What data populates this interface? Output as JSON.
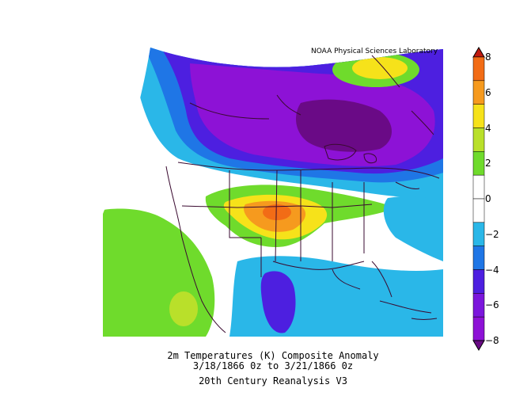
{
  "source_label": "NOAA Physical Sciences Laboratory",
  "caption": {
    "line1": "2m Temperatures (K)    Composite Anomaly",
    "line2": "3/18/1866 0z  to 3/21/1866 0z",
    "line3": "20th Century Reanalysis V3"
  },
  "colorbar": {
    "levels": [
      {
        "label": "8",
        "color": "#c01a0f"
      },
      {
        "label": "6",
        "color": "#f26c16"
      },
      {
        "label": "4",
        "color": "#f6e21a"
      },
      {
        "label": "2",
        "color": "#6fdb2c"
      },
      {
        "label": "0",
        "color": "#ffffff"
      },
      {
        "label": "−2",
        "color": "#2ab7e8"
      },
      {
        "label": "−4",
        "color": "#4d1fe0"
      },
      {
        "label": "−6",
        "color": "#8d12d6"
      },
      {
        "label": "−8",
        "color": "#6a0a86"
      }
    ],
    "bands": [
      "#c01a0f",
      "#f26c16",
      "#f69a1e",
      "#f6e21a",
      "#b9e02a",
      "#6fdb2c",
      "#ffffff",
      "#ffffff",
      "#2ab7e8",
      "#1f76e6",
      "#4d1fe0",
      "#7b16dc",
      "#8d12d6",
      "#6a0a86"
    ]
  },
  "anomaly_colors": {
    "deep_purple": "#6a0a86",
    "purple": "#8d12d6",
    "violet": "#7b16dc",
    "blue_violet": "#4d1fe0",
    "blue": "#1f76e6",
    "cyan": "#2ab7e8",
    "green": "#6fdb2c",
    "yellow_green": "#b9e02a",
    "yellow": "#f6e21a",
    "orange": "#f69a1e",
    "red_orange": "#f26c16",
    "red": "#c01a0f"
  }
}
